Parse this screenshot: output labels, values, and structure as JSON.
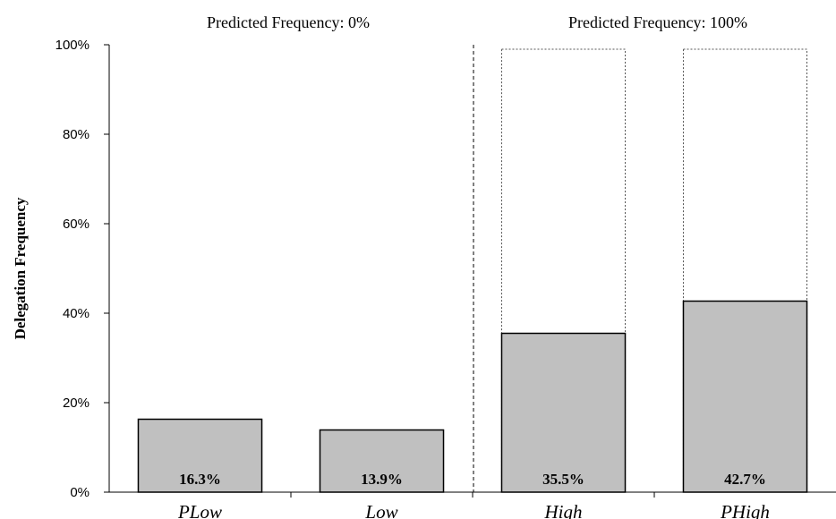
{
  "chart_data": {
    "type": "bar",
    "ylabel": "Delegation Frequency",
    "xlabel": "",
    "ylim": [
      0,
      100
    ],
    "y_ticks": [
      "0%",
      "20%",
      "40%",
      "60%",
      "80%",
      "100%"
    ],
    "categories": [
      "PLow",
      "Low",
      "High",
      "PHigh"
    ],
    "values": [
      16.3,
      13.9,
      35.5,
      42.7
    ],
    "data_labels": [
      "16.3%",
      "13.9%",
      "35.5%",
      "42.7%"
    ],
    "predicted": [
      0,
      0,
      100,
      100
    ],
    "panel_titles": [
      "Predicted Frequency: 0%",
      "Predicted Frequency: 100%"
    ],
    "grid": false,
    "legend": "none",
    "colors": {
      "bar_fill": "#c0c0c0",
      "bar_stroke": "#000000",
      "predicted_stroke": "#555555"
    }
  }
}
